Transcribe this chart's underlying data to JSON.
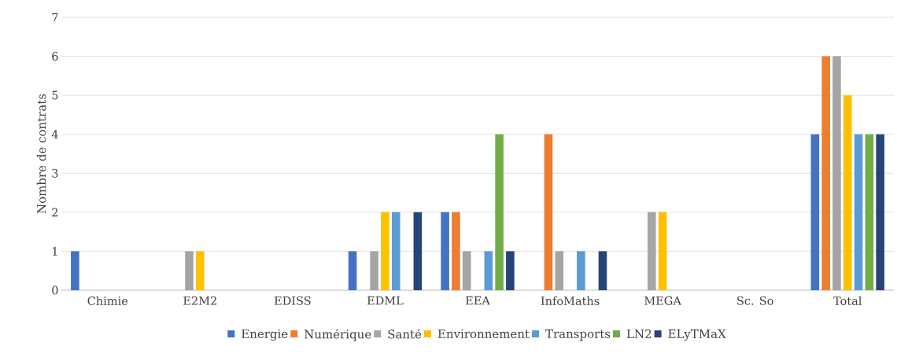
{
  "chart_data": {
    "type": "bar",
    "ylabel": "Nombre de contrats",
    "categories": [
      "Chimie",
      "E2M2",
      "EDISS",
      "EDML",
      "EEA",
      "InfoMaths",
      "MEGA",
      "Sc. So",
      "Total"
    ],
    "series": [
      {
        "name": "Energie",
        "color": "#4472c4",
        "values": [
          1,
          0,
          0,
          1,
          2,
          0,
          0,
          0,
          4
        ]
      },
      {
        "name": "Numérique",
        "color": "#ed7d31",
        "values": [
          0,
          0,
          0,
          0,
          2,
          4,
          0,
          0,
          6
        ]
      },
      {
        "name": "Santé",
        "color": "#a5a5a5",
        "values": [
          0,
          1,
          0,
          1,
          1,
          1,
          2,
          0,
          6
        ]
      },
      {
        "name": "Environnement",
        "color": "#ffc000",
        "values": [
          0,
          1,
          0,
          2,
          0,
          0,
          2,
          0,
          5
        ]
      },
      {
        "name": "Transports",
        "color": "#5b9bd5",
        "values": [
          0,
          0,
          0,
          2,
          1,
          1,
          0,
          0,
          4
        ]
      },
      {
        "name": "LN2",
        "color": "#70ad47",
        "values": [
          0,
          0,
          0,
          0,
          4,
          0,
          0,
          0,
          4
        ]
      },
      {
        "name": "ELyTMaX",
        "color": "#264478",
        "values": [
          0,
          0,
          0,
          2,
          1,
          1,
          0,
          0,
          4
        ]
      }
    ],
    "ylim": [
      0,
      7
    ],
    "yticks": [
      0,
      1,
      2,
      3,
      4,
      5,
      6,
      7
    ],
    "grid": "y",
    "legend": "bottom"
  }
}
